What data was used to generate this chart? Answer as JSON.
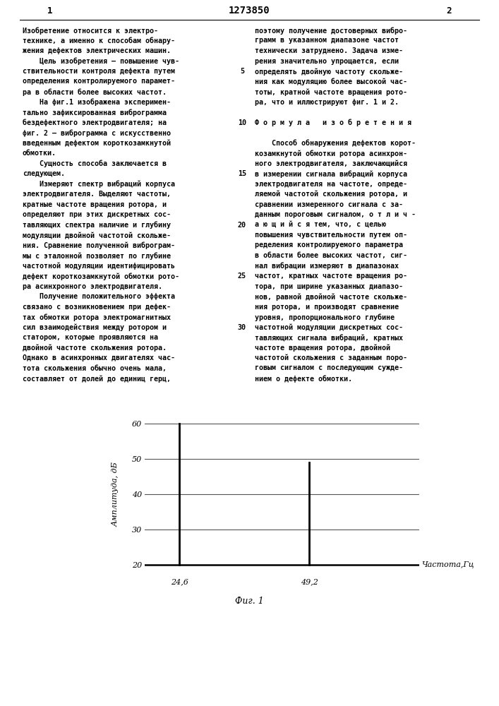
{
  "spike1_x": 24.6,
  "spike1_y": 60,
  "spike2_x": 49.2,
  "spike2_y": 49,
  "baseline_y": 20,
  "ylim": [
    17,
    64
  ],
  "yticks": [
    20,
    30,
    40,
    50,
    60
  ],
  "xlim": [
    18,
    70
  ],
  "xtick_labels": [
    "24,6",
    "49,2"
  ],
  "xtick_positions": [
    24.6,
    49.2
  ],
  "xlabel": "Частота,Гц",
  "ylabel": "Амплитуда, дБ",
  "caption": "Фиг. 1",
  "line_color": "#000000",
  "background_color": "#ffffff",
  "grid_color": "#555555",
  "title_text": "1273850",
  "page_left_text": "1",
  "page_right_text": "2",
  "line_numbers": [
    "5",
    "10",
    "15",
    "20",
    "25",
    "30"
  ],
  "left_col_lines": [
    "Изобретение относится к электро-",
    "технике, а именно к способам обнару-",
    "жения дефектов электрических машин.",
    "    Цель изобретения – повышение чув-",
    "ствительности контроля дефекта путем",
    "определения контролируемого парамет-",
    "ра в области более высоких частот.",
    "    На фиг.1 изображена эксперимен-",
    "тально зафиксированная виброграмма",
    "бездефектного электродвигателя; на",
    "фиг. 2 – виброграмма с искусственно",
    "введенным дефектом короткозамкнутой",
    "обмотки.",
    "    Сущность способа заключается в",
    "следующем.",
    "    Измеряют спектр вибраций корпуса",
    "электродвигателя. Выделяют частоты,",
    "кратные частоте вращения ротора, и",
    "определяют при этих дискретных сос-",
    "тавляющих спектра наличие и глубину",
    "модуляции двойной частотой скольже-",
    "ния. Сравнение полученной виброграм-",
    "мы с эталонной позволяет по глубине",
    "частотной модуляции идентифицировать",
    "дефект короткозамкнутой обмотки рото-",
    "ра асинхронного электродвигателя.",
    "    Получение положительного эффекта",
    "связано с возникновением при дефек-",
    "тах обмотки ротора электромагнитных",
    "сил взаимодействия между ротором и",
    "статором, которые проявляются на",
    "двойной частоте скольжения ротора.",
    "Однако в асинхронных двигателях час-",
    "тота скольжения обычно очень мала,",
    "составляет от долей до единиц герц,"
  ],
  "right_col_lines": [
    "поэтому получение достоверных вибро-",
    "грамм в указанном диапазоне частот",
    "технически затруднено. Задача изме-",
    "рения значительно упрощается, если",
    "определять двойную частоту скольже-",
    "ния как модуляцию более высокой час-",
    "тоты, кратной частоте вращения рото-",
    "ра, что и иллюстрируют фиг. 1 и 2.",
    "",
    "Ф о р м у л а   и з о б р е т е н и я",
    "",
    "    Способ обнаружения дефектов корот-",
    "козамкнутой обмотки ротора асинхрон-",
    "ного электродвигателя, заключающийся",
    "в измерении сигнала вибраций корпуса",
    "электродвигателя на частоте, опреде-",
    "ляемой частотой скольжения ротора, и",
    "сравнении измеренного сигнала с за-",
    "данным пороговым сигналом, о т л и ч -",
    "а ю щ и й с я тем, что, с целью",
    "повышения чувствительности путем оп-",
    "ределения контролируемого параметра",
    "в области более высоких частот, сиг-",
    "нал вибрации измеряют в диапазонах",
    "частот, кратных частоте вращения ро-",
    "тора, при ширине указанных диапазо-",
    "нов, равной двойной частоте скольже-",
    "ния ротора, и производят сравнение",
    "уровня, пропорционального глубине",
    "частотной модуляции дискретных сос-",
    "тавляющих сигнала вибраций, кратных",
    "частоте вращения ротора, двойной",
    "частотой скольжения с заданным поро-",
    "говым сигналом с последующим сужде-",
    "нием о дефекте обмотки."
  ]
}
